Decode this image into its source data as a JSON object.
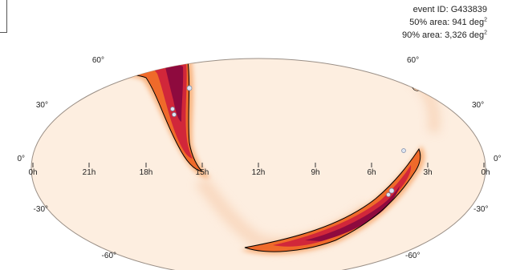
{
  "info": {
    "event_id": "event ID: G433839",
    "area50_prefix": "50% area: 941 deg",
    "area90_prefix": "90% area: 3,326 deg",
    "superscript": "2"
  },
  "ra_labels": [
    "0h",
    "21h",
    "18h",
    "15h",
    "12h",
    "9h",
    "6h",
    "3h",
    "0h"
  ],
  "dec_labels_left": [
    "60°",
    "30°",
    "0°",
    "-30°",
    "-60°"
  ],
  "dec_labels_right": [
    "60°",
    "30°",
    "0°",
    "-30°",
    "-60°"
  ],
  "colors": {
    "background": "#fdeee0",
    "low": "#f9c99a",
    "mid": "#f07a2d",
    "high": "#d1273a",
    "peak": "#8e0a3e",
    "contour": "#000000"
  }
}
